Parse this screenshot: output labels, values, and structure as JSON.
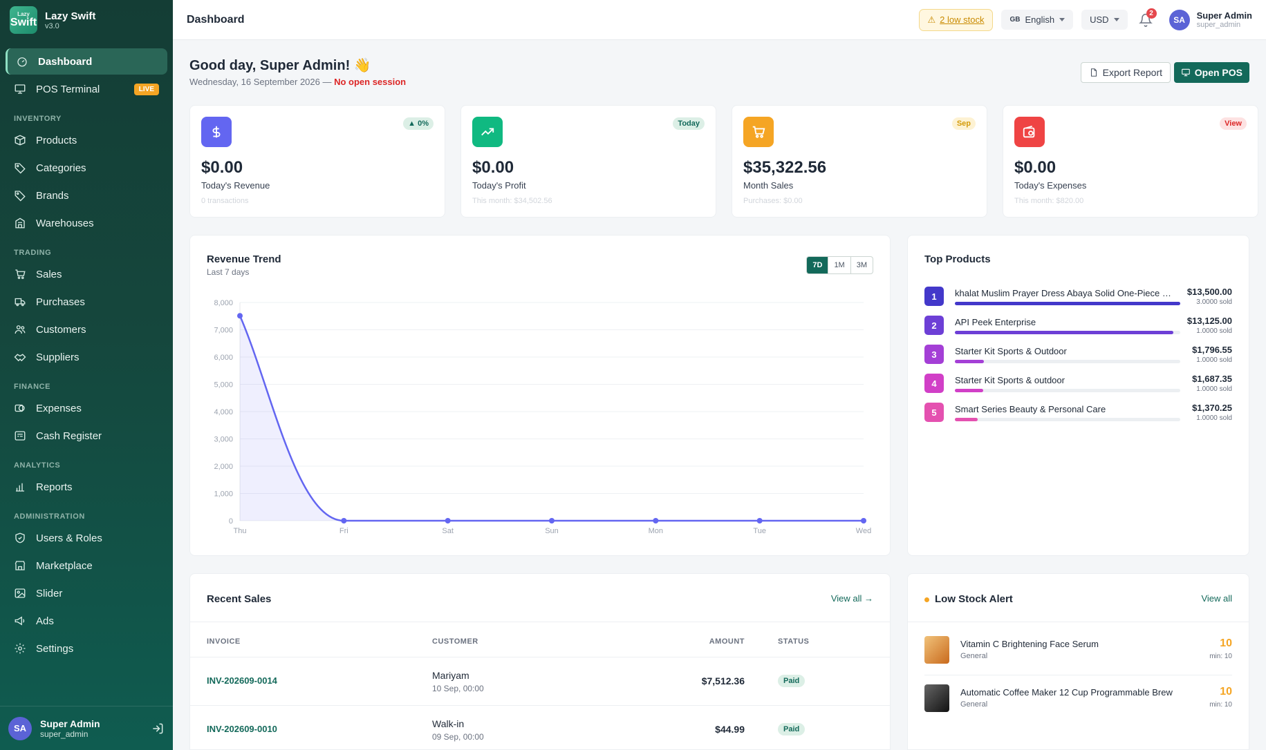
{
  "brand": {
    "logo_top": "Lazy",
    "logo_main": "Swift",
    "name": "Lazy Swift",
    "version": "v3.0"
  },
  "sidebar": {
    "items": [
      {
        "label": "Dashboard",
        "icon": "dashboard-icon",
        "active": true
      },
      {
        "label": "POS Terminal",
        "icon": "monitor-icon",
        "badge": "LIVE"
      }
    ],
    "sections": [
      {
        "title": "INVENTORY",
        "items": [
          {
            "label": "Products",
            "icon": "box-icon"
          },
          {
            "label": "Categories",
            "icon": "tag-icon"
          },
          {
            "label": "Brands",
            "icon": "tag-icon"
          },
          {
            "label": "Warehouses",
            "icon": "building-icon"
          }
        ]
      },
      {
        "title": "TRADING",
        "items": [
          {
            "label": "Sales",
            "icon": "cart-icon"
          },
          {
            "label": "Purchases",
            "icon": "truck-icon"
          },
          {
            "label": "Customers",
            "icon": "users-icon"
          },
          {
            "label": "Suppliers",
            "icon": "handshake-icon"
          }
        ]
      },
      {
        "title": "FINANCE",
        "items": [
          {
            "label": "Expenses",
            "icon": "coins-icon"
          },
          {
            "label": "Cash Register",
            "icon": "register-icon"
          }
        ]
      },
      {
        "title": "ANALYTICS",
        "items": [
          {
            "label": "Reports",
            "icon": "bar-chart-icon"
          }
        ]
      },
      {
        "title": "ADMINISTRATION",
        "items": [
          {
            "label": "Users & Roles",
            "icon": "shield-icon"
          },
          {
            "label": "Marketplace",
            "icon": "store-icon"
          },
          {
            "label": "Slider",
            "icon": "image-icon"
          },
          {
            "label": "Ads",
            "icon": "megaphone-icon"
          },
          {
            "label": "Settings",
            "icon": "gear-icon"
          }
        ]
      }
    ],
    "user": {
      "initials": "SA",
      "name": "Super Admin",
      "username": "super_admin"
    }
  },
  "topbar": {
    "title": "Dashboard",
    "low_stock": "2 low stock",
    "language_flag": "GB",
    "language": "English",
    "currency": "USD",
    "notifications": "2",
    "user": {
      "initials": "SA",
      "name": "Super Admin",
      "username": "super_admin"
    }
  },
  "greeting": {
    "title": "Good day, Super Admin! 👋",
    "date": "Wednesday, 16 September 2026 — ",
    "session": "No open session",
    "export_label": "Export Report",
    "pos_label": "Open POS"
  },
  "stats": [
    {
      "value": "$0.00",
      "label": "Today's Revenue",
      "hint": "0 transactions",
      "tag": "▲ 0%",
      "color": "#6366f1",
      "tag_bg": "#dcefe6",
      "tag_fg": "#13695a",
      "icon": "dollar-icon"
    },
    {
      "value": "$0.00",
      "label": "Today's Profit",
      "hint": "This month: $34,502.56",
      "tag": "Today",
      "color": "#10b981",
      "tag_bg": "#dcefe6",
      "tag_fg": "#13695a",
      "icon": "trend-up-icon"
    },
    {
      "value": "$35,322.56",
      "label": "Month Sales",
      "hint": "Purchases: $0.00",
      "tag": "Sep",
      "color": "#f5a524",
      "tag_bg": "#fdf2d3",
      "tag_fg": "#d49b0a",
      "icon": "cart-icon"
    },
    {
      "value": "$0.00",
      "label": "Today's Expenses",
      "hint": "This month: $820.00",
      "tag": "View",
      "color": "#ef4444",
      "tag_bg": "#fde2e2",
      "tag_fg": "#dc2626",
      "icon": "wallet-icon"
    }
  ],
  "revenue": {
    "title": "Revenue Trend",
    "subtitle": "Last 7 days",
    "ranges": [
      "7D",
      "1M",
      "3M"
    ],
    "active_range": "7D"
  },
  "chart_data": {
    "type": "area",
    "x": [
      "Thu",
      "Fri",
      "Sat",
      "Sun",
      "Mon",
      "Tue",
      "Wed"
    ],
    "series": [
      {
        "values": [
          7512.36,
          0,
          0,
          0,
          0,
          0,
          0
        ],
        "color": "#6366f1"
      }
    ],
    "ylim": [
      0,
      8000
    ],
    "yticks": [
      "0",
      "1,000",
      "2,000",
      "3,000",
      "4,000",
      "5,000",
      "6,000",
      "7,000",
      "8,000"
    ],
    "grid": true
  },
  "top_products": {
    "title": "Top Products",
    "items": [
      {
        "rank": "1",
        "name": "khalat Muslim Prayer Dress Abaya Solid One-Piece H...",
        "amount": "$13,500.00",
        "sold": "3.0000 sold",
        "share": 1.0,
        "color": "#4338ca"
      },
      {
        "rank": "2",
        "name": "API Peek Enterprise",
        "amount": "$13,125.00",
        "sold": "1.0000 sold",
        "share": 0.97,
        "color": "#6d3fd6"
      },
      {
        "rank": "3",
        "name": "Starter Kit Sports & Outdoor",
        "amount": "$1,796.55",
        "sold": "1.0000 sold",
        "share": 0.13,
        "color": "#a43fd6"
      },
      {
        "rank": "4",
        "name": "Starter Kit Sports & outdoor",
        "amount": "$1,687.35",
        "sold": "1.0000 sold",
        "share": 0.125,
        "color": "#d13fc7"
      },
      {
        "rank": "5",
        "name": "Smart Series Beauty & Personal Care",
        "amount": "$1,370.25",
        "sold": "1.0000 sold",
        "share": 0.1,
        "color": "#e451b0"
      }
    ]
  },
  "recent_sales": {
    "title": "Recent Sales",
    "view_all": "View all →",
    "columns": [
      "INVOICE",
      "CUSTOMER",
      "AMOUNT",
      "STATUS"
    ],
    "rows": [
      {
        "invoice": "INV-202609-0014",
        "customer": "Mariyam",
        "date": "10 Sep, 00:00",
        "amount": "$7,512.36",
        "status": "Paid"
      },
      {
        "invoice": "INV-202609-0010",
        "customer": "Walk-in",
        "date": "09 Sep, 00:00",
        "amount": "$44.99",
        "status": "Paid"
      }
    ]
  },
  "low_stock": {
    "title": "Low Stock Alert",
    "view_all": "View all",
    "items": [
      {
        "name": "Vitamin C Brightening Face Serum",
        "category": "General",
        "qty": "10",
        "min": "min: 10"
      },
      {
        "name": "Automatic Coffee Maker 12 Cup Programmable Brew",
        "category": "General",
        "qty": "10",
        "min": "min: 10"
      }
    ]
  }
}
